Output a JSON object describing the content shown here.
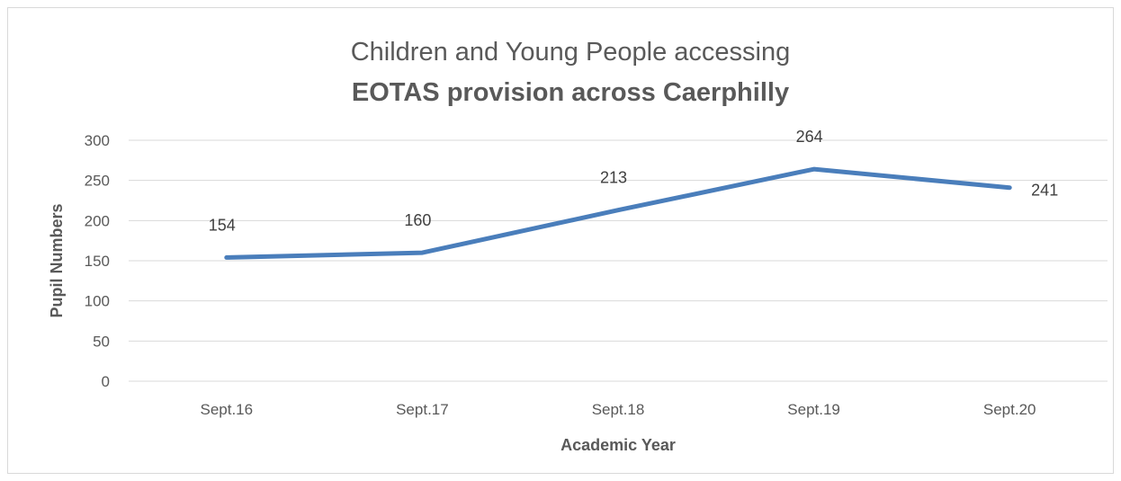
{
  "chart_data": {
    "type": "line",
    "title_line1": "Children and Young People accessing",
    "title_line2": "EOTAS provision across Caerphilly",
    "xlabel": "Academic Year",
    "ylabel": "Pupil Numbers",
    "categories": [
      "Sept.16",
      "Sept.17",
      "Sept.18",
      "Sept.19",
      "Sept.20"
    ],
    "series": [
      {
        "values": [
          154,
          160,
          213,
          264,
          241
        ],
        "color": "#4a7ebb"
      }
    ],
    "ylim": [
      0,
      300
    ],
    "yticks": [
      0,
      50,
      100,
      150,
      200,
      250,
      300
    ],
    "grid": true,
    "legend": "none",
    "data_labels": true
  }
}
